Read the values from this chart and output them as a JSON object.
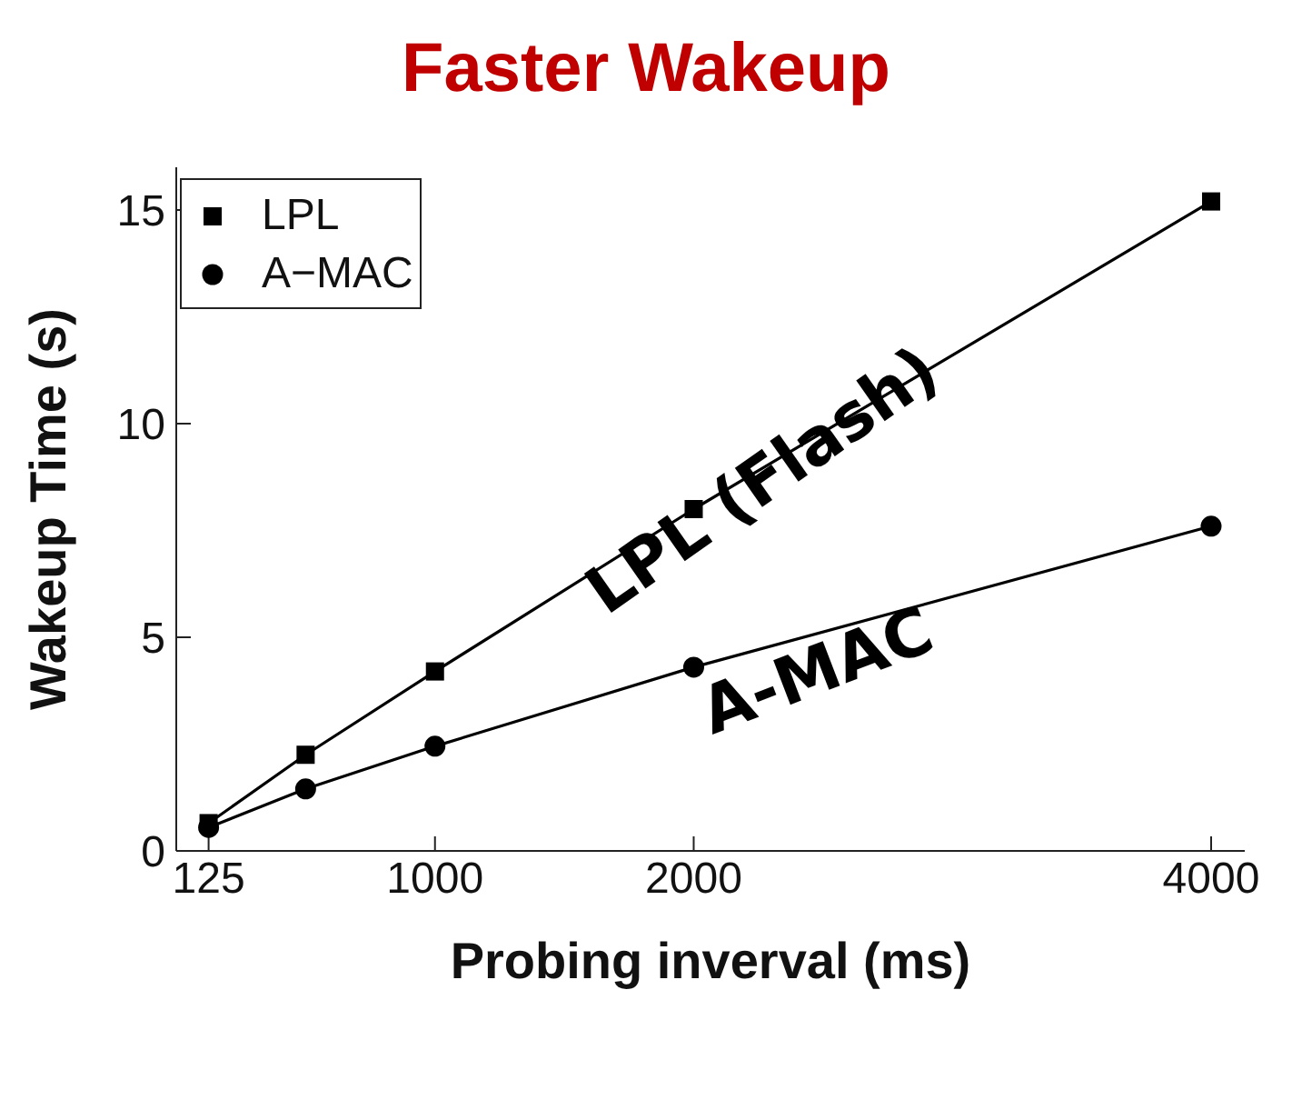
{
  "chart_data": {
    "type": "line",
    "title": "Faster Wakeup",
    "xlabel": "Probing inverval (ms)",
    "ylabel": "Wakeup Time (s)",
    "x": [
      125,
      500,
      1000,
      2000,
      4000
    ],
    "series": [
      {
        "name": "LPL",
        "color": "#000000",
        "marker": "square",
        "values": [
          0.65,
          2.25,
          4.2,
          8.0,
          15.2
        ]
      },
      {
        "name": "A−MAC",
        "color": "#000000",
        "marker": "circle",
        "values": [
          0.55,
          1.45,
          2.45,
          4.3,
          7.6
        ]
      }
    ],
    "xlim": [
      0,
      4130
    ],
    "xticks": [
      125,
      1000,
      2000,
      4000
    ],
    "ylim": [
      0,
      16
    ],
    "yticks": [
      0,
      5,
      10,
      15
    ],
    "grid": false,
    "legend": "top left",
    "line_style": "solid",
    "annotations": [
      "LPL (Flash)",
      "A-MAC"
    ]
  }
}
